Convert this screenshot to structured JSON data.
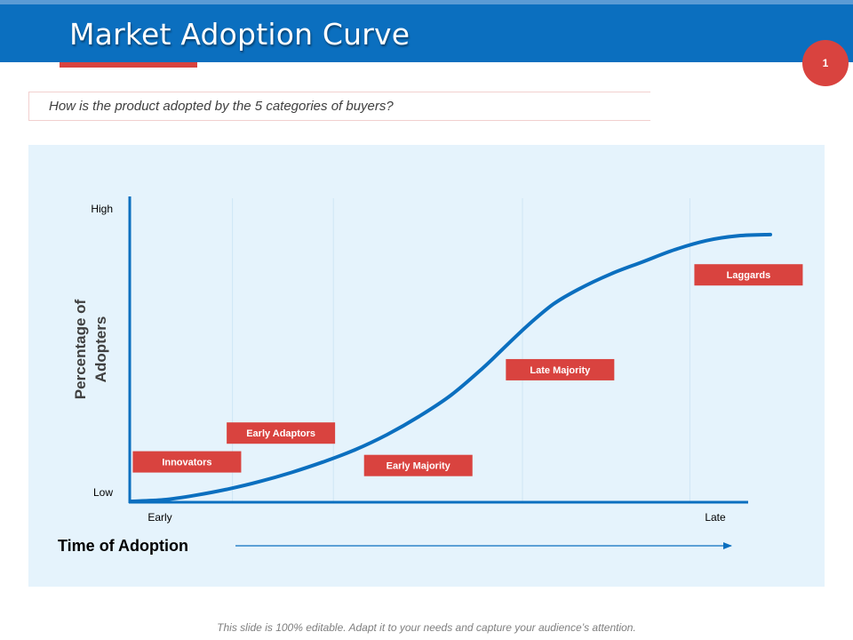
{
  "slide": {
    "title": "Market Adoption Curve",
    "page_number": "1",
    "question": "How is the product adopted by the 5 categories of buyers?",
    "footer": "This slide is 100% editable. Adapt it to your needs and capture your audience’s attention."
  },
  "colors": {
    "header": "#0b6fbf",
    "accent": "#d9433f",
    "curve": "#0b6fbf",
    "panel": "#e5f3fc"
  },
  "chart_data": {
    "type": "line",
    "title": "",
    "xlabel": "Time of Adoption",
    "ylabel_lines": [
      "Percentage of",
      "Adopters"
    ],
    "x_ticks": [
      "Early",
      "Late"
    ],
    "y_ticks": [
      "Low",
      "High"
    ],
    "xlim": [
      0,
      100
    ],
    "ylim": [
      0,
      100
    ],
    "grid": true,
    "gridlines_x": [
      15.8,
      31.6,
      61.2,
      87.4
    ],
    "series": [
      {
        "name": "Adoption curve",
        "x": [
          0,
          5,
          10,
          15,
          20,
          25,
          30,
          35,
          40,
          45,
          50,
          55,
          58,
          62,
          66,
          70,
          75,
          80,
          85,
          90,
          95,
          100
        ],
        "y": [
          0,
          0.5,
          2,
          4,
          6.5,
          9.5,
          13,
          17,
          22,
          28,
          35,
          44,
          50,
          58,
          65,
          70,
          75,
          79,
          83,
          86,
          87.6,
          88
        ]
      }
    ],
    "categories": [
      {
        "label": "Innovators",
        "x": 0.2,
        "y": 9.5
      },
      {
        "label": "Early Adaptors",
        "x": 14.9,
        "y": 19
      },
      {
        "label": "Early Majority",
        "x": 36.4,
        "y": 8.3
      },
      {
        "label": "Late Majority",
        "x": 58.6,
        "y": 39.9
      },
      {
        "label": "Laggards",
        "x": 88.1,
        "y": 71.2
      }
    ]
  }
}
